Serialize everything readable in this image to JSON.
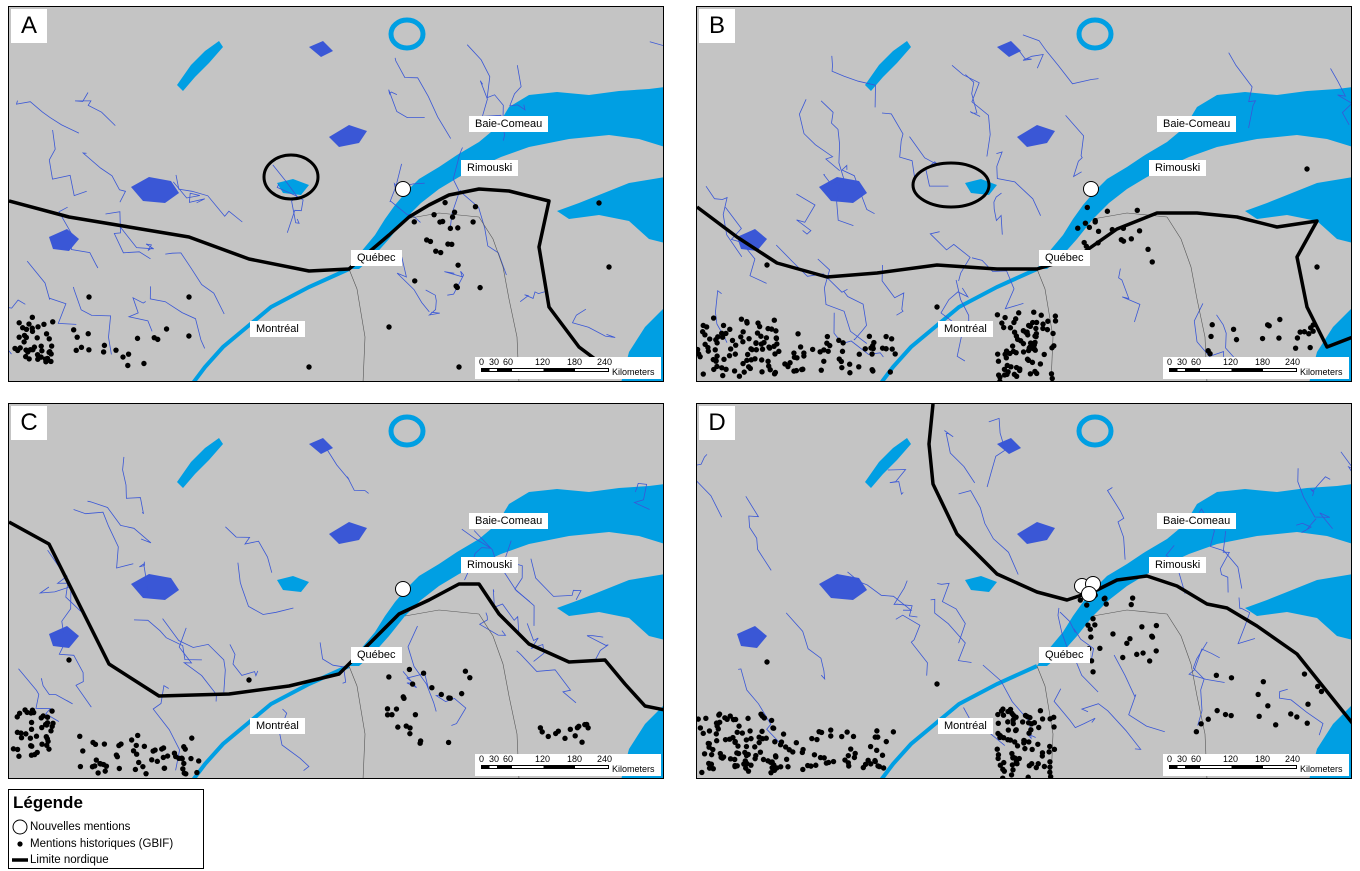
{
  "panels": [
    {
      "letter": "A"
    },
    {
      "letter": "B"
    },
    {
      "letter": "C"
    },
    {
      "letter": "D"
    }
  ],
  "cities": {
    "baie_comeau": "Baie-Comeau",
    "rimouski": "Rimouski",
    "quebec": "Québec",
    "montreal": "Montréal"
  },
  "scale_bar": {
    "ticks": [
      "0",
      "30",
      "60",
      "120",
      "180",
      "240"
    ],
    "unit": "Kilometers"
  },
  "legend": {
    "title": "Légende",
    "items": [
      {
        "label": "Nouvelles mentions",
        "symbol": "open-circle"
      },
      {
        "label": "Mentions historiques (GBIF)",
        "symbol": "black-dot"
      },
      {
        "label": "Limite nordique",
        "symbol": "thick-line"
      }
    ]
  },
  "colors": {
    "land": "#c4c4c4",
    "water": "#009fe3",
    "rivers": "#3a57d6",
    "boundary": "#000000"
  }
}
